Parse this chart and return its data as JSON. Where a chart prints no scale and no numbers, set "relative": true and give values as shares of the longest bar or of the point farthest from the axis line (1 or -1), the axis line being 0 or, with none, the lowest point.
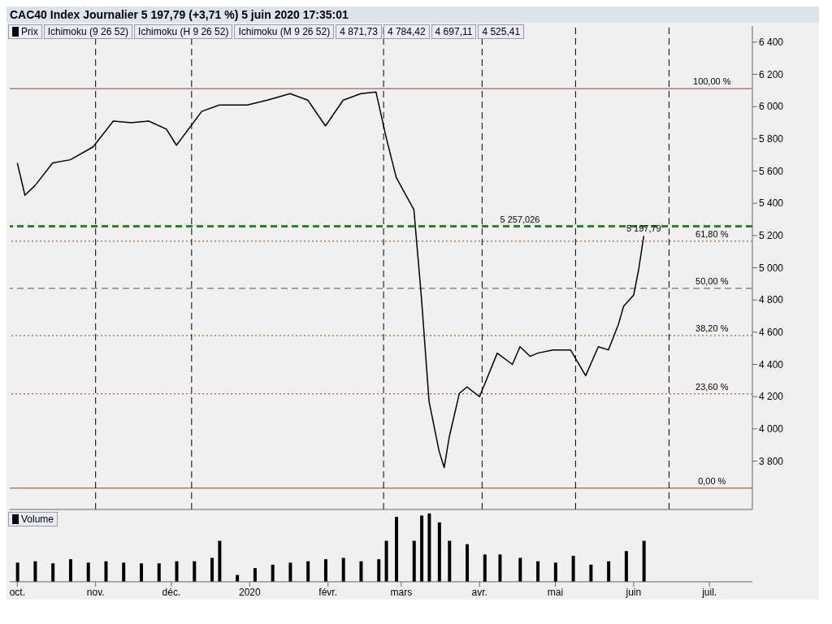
{
  "chart_data": [
    {
      "type": "line",
      "title": "CAC40 Index Journalier 5 197,79 (+3,71 %) 5 juin 2020 17:35:01",
      "x": [
        "2019-10-01",
        "2019-10-04",
        "2019-10-08",
        "2019-10-15",
        "2019-10-22",
        "2019-10-31",
        "2019-11-08",
        "2019-11-15",
        "2019-11-22",
        "2019-11-29",
        "2019-12-03",
        "2019-12-13",
        "2019-12-20",
        "2019-12-31",
        "2020-01-08",
        "2020-01-17",
        "2020-01-24",
        "2020-01-31",
        "2020-02-07",
        "2020-02-14",
        "2020-02-20",
        "2020-02-24",
        "2020-02-28",
        "2020-03-06",
        "2020-03-09",
        "2020-03-12",
        "2020-03-16",
        "2020-03-18",
        "2020-03-20",
        "2020-03-24",
        "2020-03-27",
        "2020-04-01",
        "2020-04-08",
        "2020-04-14",
        "2020-04-17",
        "2020-04-21",
        "2020-04-24",
        "2020-04-30",
        "2020-05-07",
        "2020-05-13",
        "2020-05-18",
        "2020-05-22",
        "2020-05-26",
        "2020-05-28",
        "2020-06-01",
        "2020-06-03",
        "2020-06-05"
      ],
      "series": [
        {
          "name": "Prix",
          "color": "#000000",
          "values": [
            5650,
            5450,
            5510,
            5650,
            5670,
            5750,
            5910,
            5900,
            5910,
            5860,
            5760,
            5970,
            6010,
            6010,
            6040,
            6080,
            6040,
            5880,
            6040,
            6080,
            6090,
            5810,
            5560,
            5360,
            4810,
            4170,
            3860,
            3760,
            3950,
            4220,
            4260,
            4200,
            4470,
            4400,
            4510,
            4450,
            4470,
            4490,
            4490,
            4330,
            4510,
            4490,
            4650,
            4760,
            4830,
            4990,
            5197.79
          ]
        }
      ],
      "xlim": [
        "2019-09-28",
        "2020-07-18"
      ],
      "ylim": [
        3500,
        6500
      ],
      "yticks": [
        {
          "value": 3800,
          "label": "3 800"
        },
        {
          "value": 4000,
          "label": "4 000"
        },
        {
          "value": 4200,
          "label": "4 200"
        },
        {
          "value": 4400,
          "label": "4 400"
        },
        {
          "value": 4600,
          "label": "4 600"
        },
        {
          "value": 4800,
          "label": "4 800"
        },
        {
          "value": 5000,
          "label": "5 000"
        },
        {
          "value": 5200,
          "label": "5 200"
        },
        {
          "value": 5400,
          "label": "5 400"
        },
        {
          "value": 5600,
          "label": "5 600"
        },
        {
          "value": 5800,
          "label": "5 800"
        },
        {
          "value": 6000,
          "label": "6 000"
        },
        {
          "value": 6200,
          "label": "6 200"
        },
        {
          "value": 6400,
          "label": "6 400"
        }
      ],
      "ref_lines": [
        {
          "axis": "y",
          "value": 6111.41,
          "color": "#8b4513",
          "line_style": "solid"
        },
        {
          "axis": "y",
          "value": 5164.3,
          "color": "#8b4513",
          "line_style": "dotted"
        },
        {
          "axis": "y",
          "value": 4871.73,
          "color": "#555555",
          "line_style": "dashed"
        },
        {
          "axis": "y",
          "value": 4579.1,
          "color": "#8b4513",
          "line_style": "dotted"
        },
        {
          "axis": "y",
          "value": 4217.2,
          "color": "#8b4513",
          "line_style": "dotted"
        },
        {
          "axis": "y",
          "value": 3632.06,
          "color": "#8b4513",
          "line_style": "solid"
        },
        {
          "axis": "y",
          "value": 5257.026,
          "color": "#1e8c1e",
          "line_style": "dashed"
        },
        {
          "axis": "x",
          "value": "2019-11-01",
          "color": "#000000",
          "line_style": "dashed"
        },
        {
          "axis": "x",
          "value": "2019-12-09",
          "color": "#000000",
          "line_style": "dashed"
        },
        {
          "axis": "x",
          "value": "2020-02-23",
          "color": "#000000",
          "line_style": "dashed"
        },
        {
          "axis": "x",
          "value": "2020-04-02",
          "color": "#000000",
          "line_style": "dashed"
        },
        {
          "axis": "x",
          "value": "2020-05-09",
          "color": "#000000",
          "line_style": "dashed"
        },
        {
          "axis": "x",
          "value": "2020-06-15",
          "color": "#000000",
          "line_style": "dashed"
        }
      ],
      "annotations": [
        "Ichimoku (9 26 52)",
        "Ichimoku (H 9 26 52)",
        "Ichimoku (M 9 26 52)",
        {
          "text": "5 257,026",
          "x": "2020-04-17",
          "y": 5257.026
        },
        {
          "text": "100,00 %",
          "x": "2020-07-02",
          "y": 6111.41
        },
        {
          "text": "61,80 %",
          "x": "2020-07-02",
          "y": 5164.3
        },
        {
          "text": "50,00 %",
          "x": "2020-07-02",
          "y": 4871.73
        },
        {
          "text": "38,20 %",
          "x": "2020-07-02",
          "y": 4579.1
        },
        {
          "text": "23,60 %",
          "x": "2020-07-02",
          "y": 4217.2
        },
        {
          "text": "0,00 %",
          "x": "2020-07-02",
          "y": 3632.06
        },
        {
          "text": "5 197,79",
          "x": "2020-06-05",
          "y": 5197.79
        },
        "4 871,73",
        "4 784,42",
        "4 697,11",
        "4 525,41"
      ],
      "legend": "top left",
      "grid": false,
      "marker": "none",
      "line_style": "solid",
      "tick_labels": "y"
    },
    {
      "type": "bar",
      "relative": true,
      "x": [
        "2019-10-01",
        "2019-10-08",
        "2019-10-15",
        "2019-10-22",
        "2019-10-29",
        "2019-11-05",
        "2019-11-12",
        "2019-11-19",
        "2019-11-26",
        "2019-12-03",
        "2019-12-10",
        "2019-12-17",
        "2019-12-20",
        "2019-12-27",
        "2020-01-03",
        "2020-01-10",
        "2020-01-17",
        "2020-01-24",
        "2020-01-31",
        "2020-02-07",
        "2020-02-14",
        "2020-02-21",
        "2020-02-24",
        "2020-02-28",
        "2020-03-06",
        "2020-03-09",
        "2020-03-12",
        "2020-03-16",
        "2020-03-20",
        "2020-03-27",
        "2020-04-03",
        "2020-04-09",
        "2020-04-17",
        "2020-04-24",
        "2020-05-01",
        "2020-05-08",
        "2020-05-15",
        "2020-05-22",
        "2020-05-29",
        "2020-06-05"
      ],
      "series": [
        {
          "name": "Volume",
          "color": "#000000",
          "values": [
            0.28,
            0.3,
            0.27,
            0.33,
            0.28,
            0.3,
            0.28,
            0.27,
            0.27,
            0.3,
            0.3,
            0.35,
            0.6,
            0.1,
            0.2,
            0.25,
            0.28,
            0.3,
            0.33,
            0.35,
            0.3,
            0.33,
            0.6,
            0.95,
            0.6,
            0.97,
            1,
            0.87,
            0.6,
            0.55,
            0.4,
            0.4,
            0.35,
            0.3,
            0.28,
            0.38,
            0.25,
            0.3,
            0.45,
            0.6
          ]
        }
      ],
      "xlim": [
        "2019-09-28",
        "2020-07-18"
      ],
      "xticks": [
        {
          "value": "2019-10-01",
          "label": "oct."
        },
        {
          "value": "2019-11-01",
          "label": "nov."
        },
        {
          "value": "2019-12-01",
          "label": "déc."
        },
        {
          "value": "2020-01-01",
          "label": "2020"
        },
        {
          "value": "2020-02-01",
          "label": "févr."
        },
        {
          "value": "2020-03-01",
          "label": "mars"
        },
        {
          "value": "2020-04-01",
          "label": "avr."
        },
        {
          "value": "2020-05-01",
          "label": "mai"
        },
        {
          "value": "2020-06-01",
          "label": "juin"
        },
        {
          "value": "2020-07-01",
          "label": "juil."
        }
      ],
      "legend": "top left",
      "tick_labels": "x"
    }
  ]
}
